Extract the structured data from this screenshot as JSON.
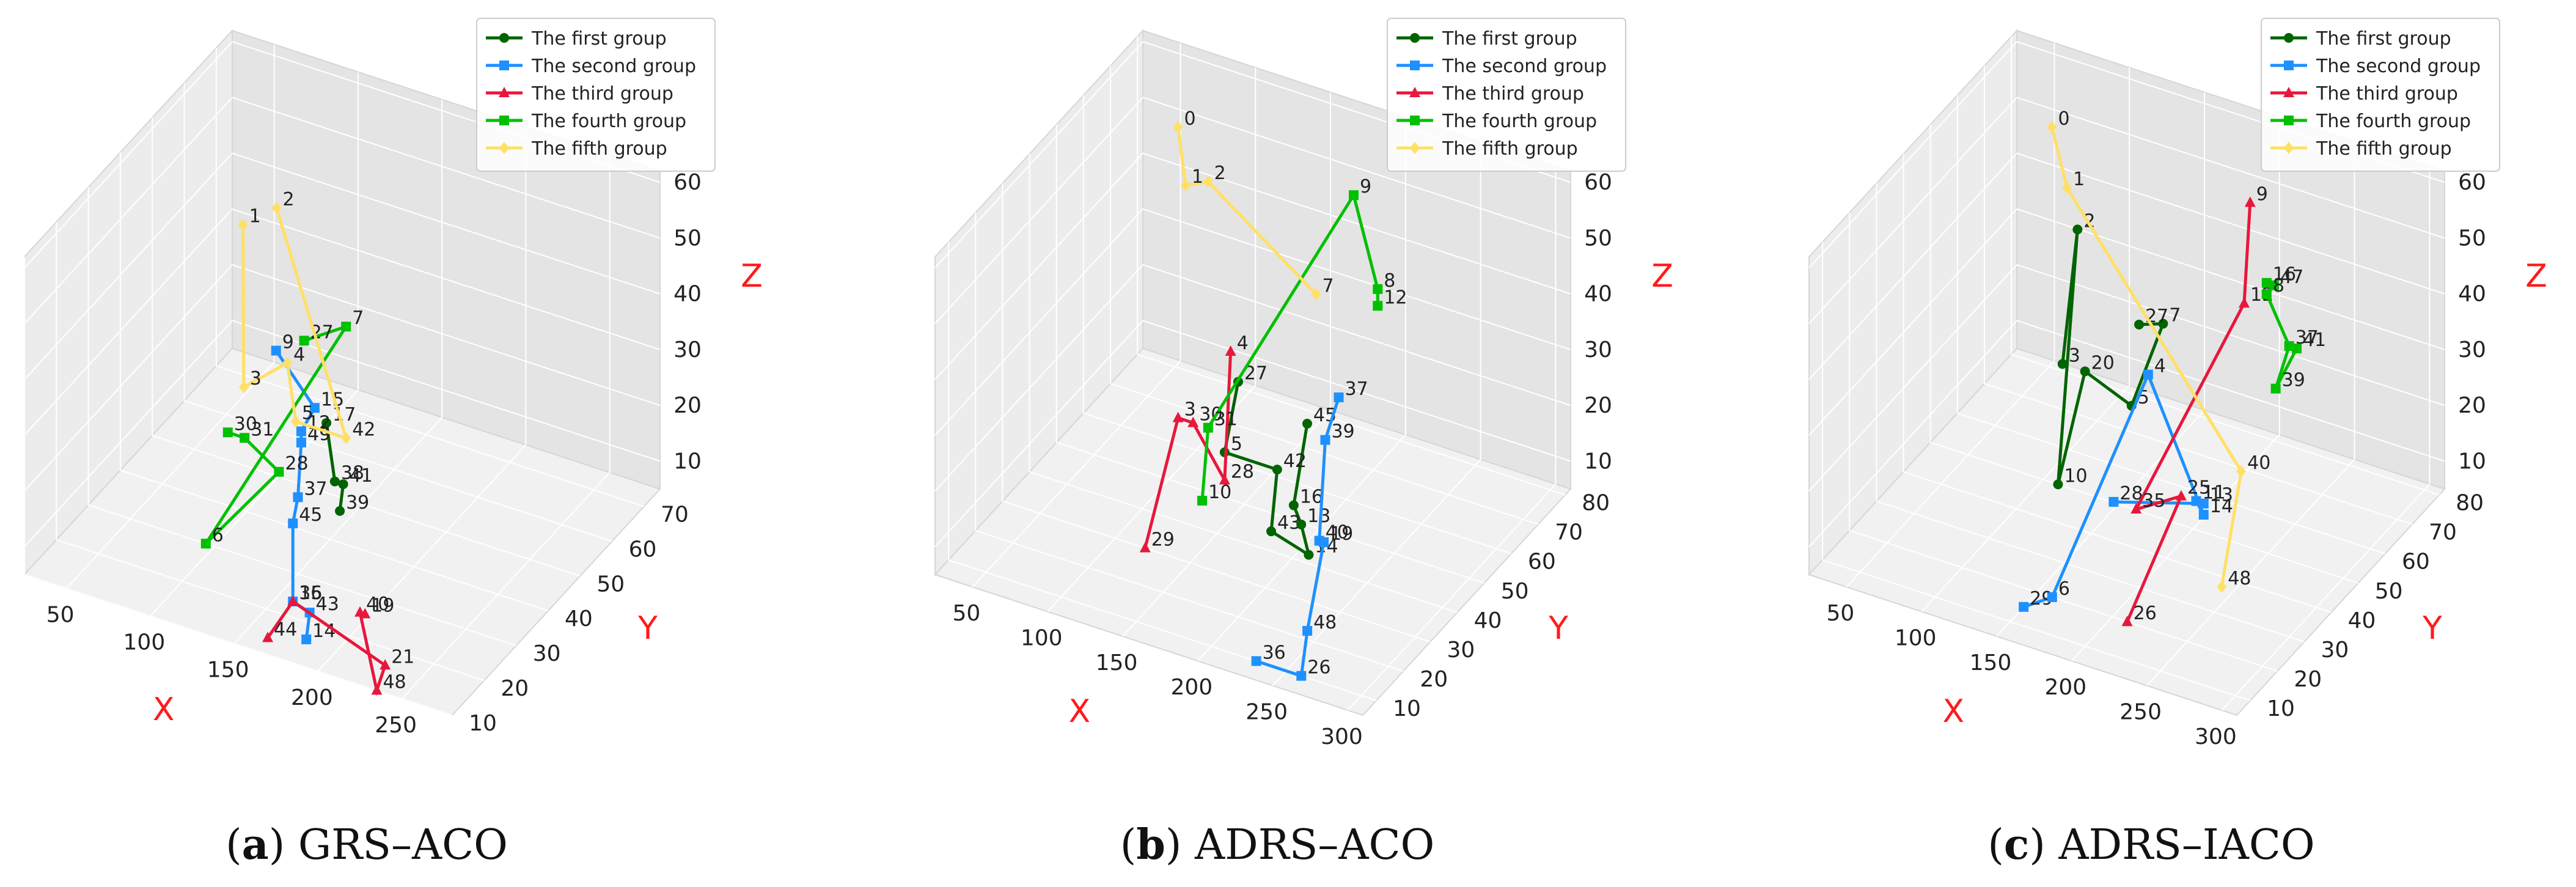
{
  "panels": [
    {
      "caption_letter": "a",
      "caption_text": " GRS–ACO",
      "chart_data": {
        "type": "line",
        "projection": "3d",
        "xlabel": "X",
        "ylabel": "Y",
        "zlabel": "Z",
        "xticks": [
          "50",
          "100",
          "150",
          "200",
          "250"
        ],
        "yticks": [
          "10",
          "20",
          "30",
          "40",
          "50",
          "60",
          "70"
        ],
        "zticks": [
          "10",
          "20",
          "30",
          "40",
          "50",
          "60"
        ],
        "xlim": [
          25,
          280
        ],
        "ylim": [
          10,
          75
        ],
        "zlim": [
          5,
          62
        ],
        "grid": true,
        "legend_position": "top-right",
        "legend": [
          "The first group",
          "The second group",
          "The third group",
          "The fourth group",
          "The fifth group"
        ],
        "series": [
          {
            "name": "The first group",
            "color": "#006400",
            "marker": "circle",
            "points": [
              {
                "label": "17",
                "x": 205,
                "y": 10,
                "z": 50
              },
              {
                "label": "38",
                "x": 210,
                "y": 10,
                "z": 40
              },
              {
                "label": "41",
                "x": 215,
                "y": 10,
                "z": 40
              },
              {
                "label": "39",
                "x": 213,
                "y": 10,
                "z": 35
              }
            ]
          },
          {
            "name": "The second group",
            "color": "#1E90FF",
            "marker": "square",
            "points": [
              {
                "label": "9",
                "x": 175,
                "y": 10,
                "z": 60
              },
              {
                "label": "15",
                "x": 198,
                "y": 10,
                "z": 52
              },
              {
                "label": "12",
                "x": 190,
                "y": 10,
                "z": 47
              },
              {
                "label": "49",
                "x": 190,
                "y": 10,
                "z": 45
              },
              {
                "label": "37",
                "x": 188,
                "y": 10,
                "z": 35
              },
              {
                "label": "45",
                "x": 185,
                "y": 10,
                "z": 30
              },
              {
                "label": "16",
                "x": 185,
                "y": 10,
                "z": 16
              },
              {
                "label": "43",
                "x": 195,
                "y": 10,
                "z": 15
              },
              {
                "label": "14",
                "x": 193,
                "y": 10,
                "z": 10
              }
            ]
          },
          {
            "name": "The third group",
            "color": "#E8173C",
            "marker": "triangle",
            "points": [
              {
                "label": "44",
                "x": 170,
                "y": 10,
                "z": 8
              },
              {
                "label": "35",
                "x": 185,
                "y": 10,
                "z": 16
              },
              {
                "label": "21",
                "x": 240,
                "y": 10,
                "z": 10
              },
              {
                "label": "48",
                "x": 235,
                "y": 10,
                "z": 5
              },
              {
                "label": "40",
                "x": 225,
                "y": 10,
                "z": 18
              },
              {
                "label": "19",
                "x": 228,
                "y": 10,
                "z": 18
              }
            ]
          },
          {
            "name": "The fourth group",
            "color": "#00C000",
            "marker": "square",
            "points": [
              {
                "label": "30",
                "x": 70,
                "y": 50,
                "z": 10
              },
              {
                "label": "31",
                "x": 80,
                "y": 50,
                "z": 10
              },
              {
                "label": "28",
                "x": 110,
                "y": 45,
                "z": 10
              },
              {
                "label": "6",
                "x": 95,
                "y": 30,
                "z": 5
              },
              {
                "label": "7",
                "x": 150,
                "y": 45,
                "z": 40
              },
              {
                "label": "27",
                "x": 125,
                "y": 45,
                "z": 35
              }
            ]
          },
          {
            "name": "The fifth group",
            "color": "#FFE066",
            "marker": "diamond",
            "points": [
              {
                "label": "1",
                "x": 60,
                "y": 60,
                "z": 40
              },
              {
                "label": "3",
                "x": 70,
                "y": 55,
                "z": 15
              },
              {
                "label": "4",
                "x": 115,
                "y": 45,
                "z": 30
              },
              {
                "label": "5",
                "x": 120,
                "y": 45,
                "z": 20
              },
              {
                "label": "42",
                "x": 150,
                "y": 45,
                "z": 20
              },
              {
                "label": "2",
                "x": 80,
                "y": 60,
                "z": 45
              }
            ]
          }
        ]
      }
    },
    {
      "caption_letter": "b",
      "caption_text": " ADRS–ACO",
      "chart_data": {
        "type": "line",
        "projection": "3d",
        "xlabel": "X",
        "ylabel": "Y",
        "zlabel": "Z",
        "xticks": [
          "50",
          "100",
          "150",
          "200",
          "250",
          "300"
        ],
        "yticks": [
          "10",
          "20",
          "30",
          "40",
          "50",
          "60",
          "70",
          "80"
        ],
        "zticks": [
          "10",
          "20",
          "30",
          "40",
          "50",
          "60"
        ],
        "xlim": [
          25,
          310
        ],
        "ylim": [
          5,
          82
        ],
        "zlim": [
          5,
          62
        ],
        "grid": true,
        "legend_position": "top-right",
        "legend": [
          "The first group",
          "The second group",
          "The third group",
          "The fourth group",
          "The fifth group"
        ],
        "series": [
          {
            "name": "The first group",
            "color": "#006400",
            "marker": "circle",
            "points": [
              {
                "label": "27",
                "x": 155,
                "y": 45,
                "z": 30
              },
              {
                "label": "5",
                "x": 155,
                "y": 40,
                "z": 20
              },
              {
                "label": "42",
                "x": 190,
                "y": 40,
                "z": 20
              },
              {
                "label": "43",
                "x": 195,
                "y": 35,
                "z": 12
              },
              {
                "label": "14",
                "x": 220,
                "y": 35,
                "z": 10
              },
              {
                "label": "13",
                "x": 215,
                "y": 35,
                "z": 15
              },
              {
                "label": "16",
                "x": 210,
                "y": 35,
                "z": 18
              },
              {
                "label": "45",
                "x": 210,
                "y": 40,
                "z": 30
              }
            ]
          },
          {
            "name": "The second group",
            "color": "#1E90FF",
            "marker": "square",
            "points": [
              {
                "label": "37",
                "x": 240,
                "y": 35,
                "z": 40
              },
              {
                "label": "39",
                "x": 240,
                "y": 30,
                "z": 35
              },
              {
                "label": "40",
                "x": 245,
                "y": 25,
                "z": 20
              },
              {
                "label": "19",
                "x": 248,
                "y": 25,
                "z": 20
              },
              {
                "label": "48",
                "x": 255,
                "y": 15,
                "z": 10
              },
              {
                "label": "26",
                "x": 260,
                "y": 10,
                "z": 5
              },
              {
                "label": "36",
                "x": 230,
                "y": 10,
                "z": 5
              }
            ]
          },
          {
            "name": "The third group",
            "color": "#E8173C",
            "marker": "triangle",
            "points": [
              {
                "label": "4",
                "x": 150,
                "y": 45,
                "z": 35
              },
              {
                "label": "28",
                "x": 155,
                "y": 40,
                "z": 15
              },
              {
                "label": "30",
                "x": 125,
                "y": 45,
                "z": 20
              },
              {
                "label": "3",
                "x": 115,
                "y": 45,
                "z": 20
              },
              {
                "label": "29",
                "x": 120,
                "y": 30,
                "z": 5
              }
            ]
          },
          {
            "name": "The fourth group",
            "color": "#00C000",
            "marker": "square",
            "points": [
              {
                "label": "12",
                "x": 230,
                "y": 55,
                "z": 45
              },
              {
                "label": "8",
                "x": 230,
                "y": 55,
                "z": 48
              },
              {
                "label": "9",
                "x": 205,
                "y": 60,
                "z": 60
              },
              {
                "label": "31",
                "x": 135,
                "y": 45,
                "z": 20
              },
              {
                "label": "10",
                "x": 140,
                "y": 40,
                "z": 10
              }
            ]
          },
          {
            "name": "The fifth group",
            "color": "#FFE066",
            "marker": "diamond",
            "points": [
              {
                "label": "0",
                "x": 70,
                "y": 70,
                "z": 55
              },
              {
                "label": "1",
                "x": 75,
                "y": 70,
                "z": 45
              },
              {
                "label": "2",
                "x": 90,
                "y": 70,
                "z": 47
              },
              {
                "label": "7",
                "x": 180,
                "y": 60,
                "z": 40
              }
            ]
          }
        ]
      }
    },
    {
      "caption_letter": "c",
      "caption_text": " ADRS–IACO",
      "chart_data": {
        "type": "line",
        "projection": "3d",
        "xlabel": "X",
        "ylabel": "Y",
        "zlabel": "Z",
        "xticks": [
          "50",
          "100",
          "150",
          "200",
          "250",
          "300"
        ],
        "yticks": [
          "10",
          "20",
          "30",
          "40",
          "50",
          "60",
          "70",
          "80"
        ],
        "zticks": [
          "10",
          "20",
          "30",
          "40",
          "50",
          "60"
        ],
        "xlim": [
          25,
          310
        ],
        "ylim": [
          5,
          82
        ],
        "zlim": [
          5,
          62
        ],
        "grid": true,
        "legend_position": "top-right",
        "legend": [
          "The first group",
          "The second group",
          "The third group",
          "The fourth group",
          "The fifth group"
        ],
        "series": [
          {
            "name": "The first group",
            "color": "#006400",
            "marker": "circle",
            "points": [
              {
                "label": "3",
                "x": 95,
                "y": 60,
                "z": 20
              },
              {
                "label": "2",
                "x": 105,
                "y": 60,
                "z": 45
              },
              {
                "label": "10",
                "x": 110,
                "y": 50,
                "z": 5
              },
              {
                "label": "20",
                "x": 110,
                "y": 60,
                "z": 20
              },
              {
                "label": "5",
                "x": 150,
                "y": 55,
                "z": 20
              },
              {
                "label": "7",
                "x": 180,
                "y": 50,
                "z": 40
              },
              {
                "label": "27",
                "x": 155,
                "y": 55,
                "z": 35
              }
            ]
          },
          {
            "name": "The second group",
            "color": "#1E90FF",
            "marker": "square",
            "points": [
              {
                "label": "29",
                "x": 150,
                "y": 15,
                "z": 5
              },
              {
                "label": "6",
                "x": 160,
                "y": 20,
                "z": 5
              },
              {
                "label": "4",
                "x": 170,
                "y": 50,
                "z": 30
              },
              {
                "label": "14",
                "x": 225,
                "y": 40,
                "z": 15
              },
              {
                "label": "11",
                "x": 220,
                "y": 40,
                "z": 17
              },
              {
                "label": "13",
                "x": 225,
                "y": 40,
                "z": 17
              },
              {
                "label": "28",
                "x": 165,
                "y": 40,
                "z": 12
              }
            ]
          },
          {
            "name": "The third group",
            "color": "#E8173C",
            "marker": "triangle",
            "points": [
              {
                "label": "9",
                "x": 220,
                "y": 60,
                "z": 60
              },
              {
                "label": "12",
                "x": 225,
                "y": 55,
                "z": 45
              },
              {
                "label": "35",
                "x": 180,
                "y": 40,
                "z": 12
              },
              {
                "label": "25",
                "x": 210,
                "y": 40,
                "z": 17
              },
              {
                "label": "26",
                "x": 210,
                "y": 20,
                "z": 5
              }
            ]
          },
          {
            "name": "The fourth group",
            "color": "#00C000",
            "marker": "square",
            "points": [
              {
                "label": "16",
                "x": 240,
                "y": 55,
                "z": 50
              },
              {
                "label": "47",
                "x": 245,
                "y": 55,
                "z": 50
              },
              {
                "label": "8",
                "x": 240,
                "y": 55,
                "z": 48
              },
              {
                "label": "37",
                "x": 255,
                "y": 55,
                "z": 40
              },
              {
                "label": "39",
                "x": 255,
                "y": 50,
                "z": 35
              },
              {
                "label": "41",
                "x": 260,
                "y": 55,
                "z": 40
              }
            ]
          },
          {
            "name": "The fifth group",
            "color": "#FFE066",
            "marker": "diamond",
            "points": [
              {
                "label": "0",
                "x": 70,
                "y": 70,
                "z": 55
              },
              {
                "label": "1",
                "x": 80,
                "y": 70,
                "z": 45
              },
              {
                "label": "40",
                "x": 250,
                "y": 40,
                "z": 25
              },
              {
                "label": "48",
                "x": 255,
                "y": 30,
                "z": 10
              }
            ]
          }
        ]
      }
    }
  ]
}
